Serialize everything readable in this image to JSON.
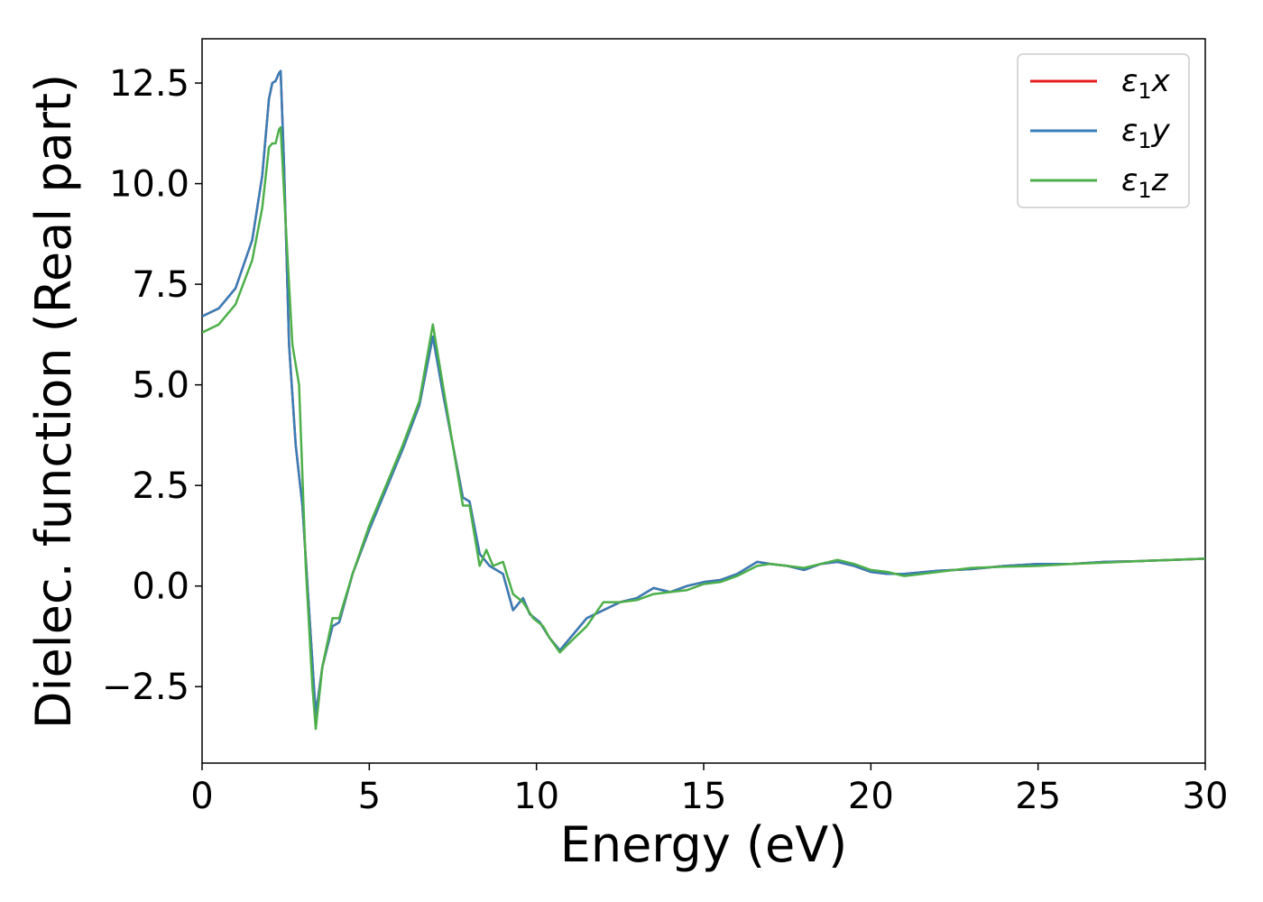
{
  "chart_data": {
    "type": "line",
    "xlabel": "Energy (eV)",
    "ylabel": "Dielec. function (Real part)",
    "xlim": [
      0,
      30
    ],
    "ylim": [
      -4.4,
      13.6
    ],
    "xticks": [
      0,
      5,
      10,
      15,
      20,
      25,
      30
    ],
    "xtick_labels": [
      "0",
      "5",
      "10",
      "15",
      "20",
      "25",
      "30"
    ],
    "yticks": [
      -2.5,
      0.0,
      2.5,
      5.0,
      7.5,
      10.0,
      12.5
    ],
    "ytick_labels": [
      "−2.5",
      "0.0",
      "2.5",
      "5.0",
      "7.5",
      "10.0",
      "12.5"
    ],
    "grid": false,
    "legend_position": "top-right",
    "series": [
      {
        "name": "ε1x",
        "label_main": "ε",
        "label_sub": "1",
        "label_var": "x",
        "color": "#e41a1c",
        "x": [
          0,
          0.5,
          1.0,
          1.5,
          1.8,
          2.0,
          2.1,
          2.2,
          2.3,
          2.35,
          2.45,
          2.6,
          2.8,
          3.0,
          3.2,
          3.4,
          3.6,
          3.9,
          4.1,
          4.5,
          5.0,
          5.5,
          6.0,
          6.5,
          6.9,
          7.2,
          7.5,
          7.8,
          8.0,
          8.3,
          8.6,
          9.0,
          9.3,
          9.6,
          9.8,
          10.1,
          10.4,
          10.7,
          11.0,
          11.5,
          12.0,
          12.5,
          13.0,
          13.5,
          14.0,
          14.5,
          15.0,
          15.5,
          16.0,
          16.6,
          17.0,
          17.5,
          18.0,
          18.5,
          19.0,
          19.5,
          20.0,
          20.5,
          21.0,
          22.0,
          23.0,
          24.0,
          25.0,
          26.0,
          27.0,
          28.0,
          29.0,
          30.0
        ],
        "y": [
          6.7,
          6.9,
          7.4,
          8.6,
          10.2,
          12.1,
          12.5,
          12.55,
          12.75,
          12.8,
          10.5,
          6.0,
          3.5,
          2.0,
          -0.6,
          -3.2,
          -2.0,
          -1.0,
          -0.9,
          0.3,
          1.4,
          2.4,
          3.4,
          4.5,
          6.2,
          4.8,
          3.5,
          2.2,
          2.1,
          0.8,
          0.5,
          0.3,
          -0.6,
          -0.3,
          -0.7,
          -0.9,
          -1.3,
          -1.6,
          -1.3,
          -0.8,
          -0.6,
          -0.4,
          -0.3,
          -0.05,
          -0.15,
          0.0,
          0.1,
          0.15,
          0.3,
          0.6,
          0.55,
          0.5,
          0.4,
          0.55,
          0.6,
          0.5,
          0.35,
          0.3,
          0.3,
          0.38,
          0.42,
          0.5,
          0.55,
          0.55,
          0.6,
          0.62,
          0.65,
          0.68
        ]
      },
      {
        "name": "ε1y",
        "label_main": "ε",
        "label_sub": "1",
        "label_var": "y",
        "color": "#377eb8",
        "x": [
          0,
          0.5,
          1.0,
          1.5,
          1.8,
          2.0,
          2.1,
          2.2,
          2.3,
          2.35,
          2.45,
          2.6,
          2.8,
          3.0,
          3.2,
          3.4,
          3.6,
          3.9,
          4.1,
          4.5,
          5.0,
          5.5,
          6.0,
          6.5,
          6.9,
          7.2,
          7.5,
          7.8,
          8.0,
          8.3,
          8.6,
          9.0,
          9.3,
          9.6,
          9.8,
          10.1,
          10.4,
          10.7,
          11.0,
          11.5,
          12.0,
          12.5,
          13.0,
          13.5,
          14.0,
          14.5,
          15.0,
          15.5,
          16.0,
          16.6,
          17.0,
          17.5,
          18.0,
          18.5,
          19.0,
          19.5,
          20.0,
          20.5,
          21.0,
          22.0,
          23.0,
          24.0,
          25.0,
          26.0,
          27.0,
          28.0,
          29.0,
          30.0
        ],
        "y": [
          6.7,
          6.9,
          7.4,
          8.6,
          10.2,
          12.1,
          12.5,
          12.55,
          12.75,
          12.8,
          10.5,
          6.0,
          3.5,
          2.0,
          -0.6,
          -3.2,
          -2.0,
          -1.0,
          -0.9,
          0.3,
          1.4,
          2.4,
          3.4,
          4.5,
          6.2,
          4.8,
          3.5,
          2.2,
          2.1,
          0.8,
          0.5,
          0.3,
          -0.6,
          -0.3,
          -0.7,
          -0.9,
          -1.3,
          -1.6,
          -1.3,
          -0.8,
          -0.6,
          -0.4,
          -0.3,
          -0.05,
          -0.15,
          0.0,
          0.1,
          0.15,
          0.3,
          0.6,
          0.55,
          0.5,
          0.4,
          0.55,
          0.6,
          0.5,
          0.35,
          0.3,
          0.3,
          0.38,
          0.42,
          0.5,
          0.55,
          0.55,
          0.6,
          0.62,
          0.65,
          0.68
        ]
      },
      {
        "name": "ε1z",
        "label_main": "ε",
        "label_sub": "1",
        "label_var": "z",
        "color": "#4daf4a",
        "x": [
          0,
          0.5,
          1.0,
          1.5,
          1.8,
          2.0,
          2.1,
          2.2,
          2.3,
          2.35,
          2.5,
          2.7,
          2.9,
          3.1,
          3.3,
          3.4,
          3.6,
          3.9,
          4.1,
          4.5,
          5.0,
          5.5,
          6.0,
          6.5,
          6.9,
          7.2,
          7.5,
          7.8,
          8.0,
          8.3,
          8.5,
          8.7,
          9.0,
          9.3,
          9.6,
          9.9,
          10.2,
          10.4,
          10.7,
          11.0,
          11.5,
          12.0,
          12.5,
          13.0,
          13.5,
          14.0,
          14.5,
          15.0,
          15.5,
          16.0,
          16.6,
          17.0,
          17.5,
          18.0,
          18.5,
          19.0,
          19.5,
          20.0,
          20.5,
          21.0,
          22.0,
          23.0,
          24.0,
          25.0,
          26.0,
          27.0,
          28.0,
          29.0,
          30.0
        ],
        "y": [
          6.3,
          6.5,
          7.0,
          8.1,
          9.4,
          10.9,
          11.0,
          11.0,
          11.35,
          11.4,
          9.0,
          6.0,
          5.0,
          0.5,
          -2.5,
          -3.55,
          -2.0,
          -0.8,
          -0.8,
          0.3,
          1.5,
          2.5,
          3.5,
          4.6,
          6.5,
          5.0,
          3.5,
          2.0,
          2.0,
          0.5,
          0.9,
          0.5,
          0.6,
          -0.2,
          -0.4,
          -0.8,
          -1.0,
          -1.3,
          -1.65,
          -1.4,
          -1.0,
          -0.4,
          -0.4,
          -0.35,
          -0.2,
          -0.15,
          -0.1,
          0.05,
          0.1,
          0.25,
          0.5,
          0.55,
          0.5,
          0.45,
          0.55,
          0.65,
          0.55,
          0.4,
          0.35,
          0.25,
          0.35,
          0.45,
          0.48,
          0.5,
          0.55,
          0.58,
          0.62,
          0.65,
          0.68
        ]
      }
    ]
  }
}
